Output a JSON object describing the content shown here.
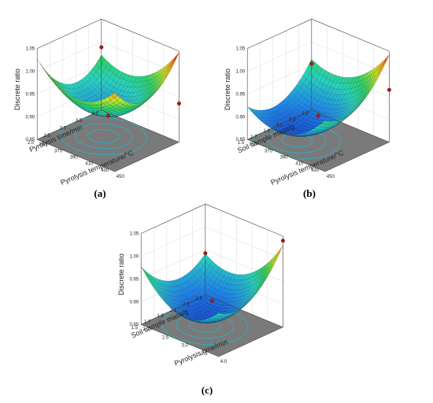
{
  "figure": {
    "labels": [
      "(a)",
      "(b)",
      "(c)"
    ]
  },
  "colors": {
    "low": "#1a2fd6",
    "mid": "#2bd16a",
    "high": "#d81e1e",
    "floor": "#7a7a7a",
    "contour": "#1fb7d0",
    "point": "#b01818"
  },
  "chart_data": [
    {
      "type": "surface3d",
      "label": "(a)",
      "zlabel": "Discrete ratio",
      "xlabel": "Pyrolysis time/min",
      "ylabel": "Pyrolysis temperature/°C",
      "x_ticks": [
        "2.0",
        "2.5",
        "3.0",
        "3.5",
        "4.0"
      ],
      "y_ticks": [
        "350",
        "370",
        "390",
        "410",
        "430",
        "450"
      ],
      "z_ticks": [
        "0.85",
        "0.90",
        "0.95",
        "1.00",
        "1.05"
      ],
      "xlim": [
        2.0,
        4.0
      ],
      "ylim": [
        350,
        450
      ],
      "zlim": [
        0.85,
        1.05
      ],
      "surface": {
        "z_center": 0.905,
        "min_x": 3.1,
        "min_y": 390,
        "x_curvature": 0.06,
        "y_curvature": 0.05,
        "cross": 0.02
      },
      "points": [
        {
          "x": 3.0,
          "y": 400,
          "z": 0.905
        },
        {
          "x": 4.0,
          "y": 450,
          "z": 0.935
        },
        {
          "x": 4.0,
          "y": 350,
          "z": 0.988
        }
      ]
    },
    {
      "type": "surface3d",
      "label": "(b)",
      "zlabel": "Discrete ratio",
      "xlabel": "Soil sample mass/g",
      "ylabel": "Pyrolysis temperature/°C",
      "x_ticks": [
        "1.5",
        "1.7",
        "1.9",
        "2.1",
        "2.3",
        "2.5"
      ],
      "y_ticks": [
        "350",
        "370",
        "390",
        "410",
        "430",
        "450"
      ],
      "z_ticks": [
        "0.85",
        "0.90",
        "0.95",
        "1.00",
        "1.05"
      ],
      "xlim": [
        1.5,
        2.5
      ],
      "ylim": [
        350,
        450
      ],
      "zlim": [
        0.85,
        1.05
      ],
      "surface": {
        "z_center": 0.873,
        "min_x": 1.85,
        "min_y": 385,
        "x_curvature": 0.045,
        "y_curvature": 0.045,
        "cross": 0.01
      },
      "points": [
        {
          "x": 2.0,
          "y": 400,
          "z": 0.905
        },
        {
          "x": 2.5,
          "y": 450,
          "z": 0.965
        },
        {
          "x": 2.5,
          "y": 350,
          "z": 0.952
        }
      ]
    },
    {
      "type": "surface3d",
      "label": "(c)",
      "zlabel": "Discrete ratio",
      "xlabel": "Soil sample mass/g",
      "ylabel": "Pyrolysis time/min",
      "x_ticks": [
        "1.5",
        "1.7",
        "1.9",
        "2.1",
        "2.3",
        "2.5"
      ],
      "y_ticks": [
        "2.0",
        "2.5",
        "3.0",
        "3.5",
        "4.0"
      ],
      "z_ticks": [
        "0.85",
        "0.90",
        "0.95",
        "1.00",
        "1.05"
      ],
      "xlim": [
        1.5,
        2.5
      ],
      "ylim": [
        2.0,
        4.0
      ],
      "zlim": [
        0.85,
        1.05
      ],
      "surface": {
        "z_center": 0.872,
        "min_x": 1.95,
        "min_y": 2.9,
        "x_curvature": 0.045,
        "y_curvature": 0.055,
        "cross": 0.03
      },
      "points": [
        {
          "x": 2.0,
          "y": 3.0,
          "z": 0.905
        },
        {
          "x": 2.5,
          "y": 4.0,
          "z": 1.04
        },
        {
          "x": 2.5,
          "y": 2.0,
          "z": 0.942
        }
      ]
    }
  ]
}
